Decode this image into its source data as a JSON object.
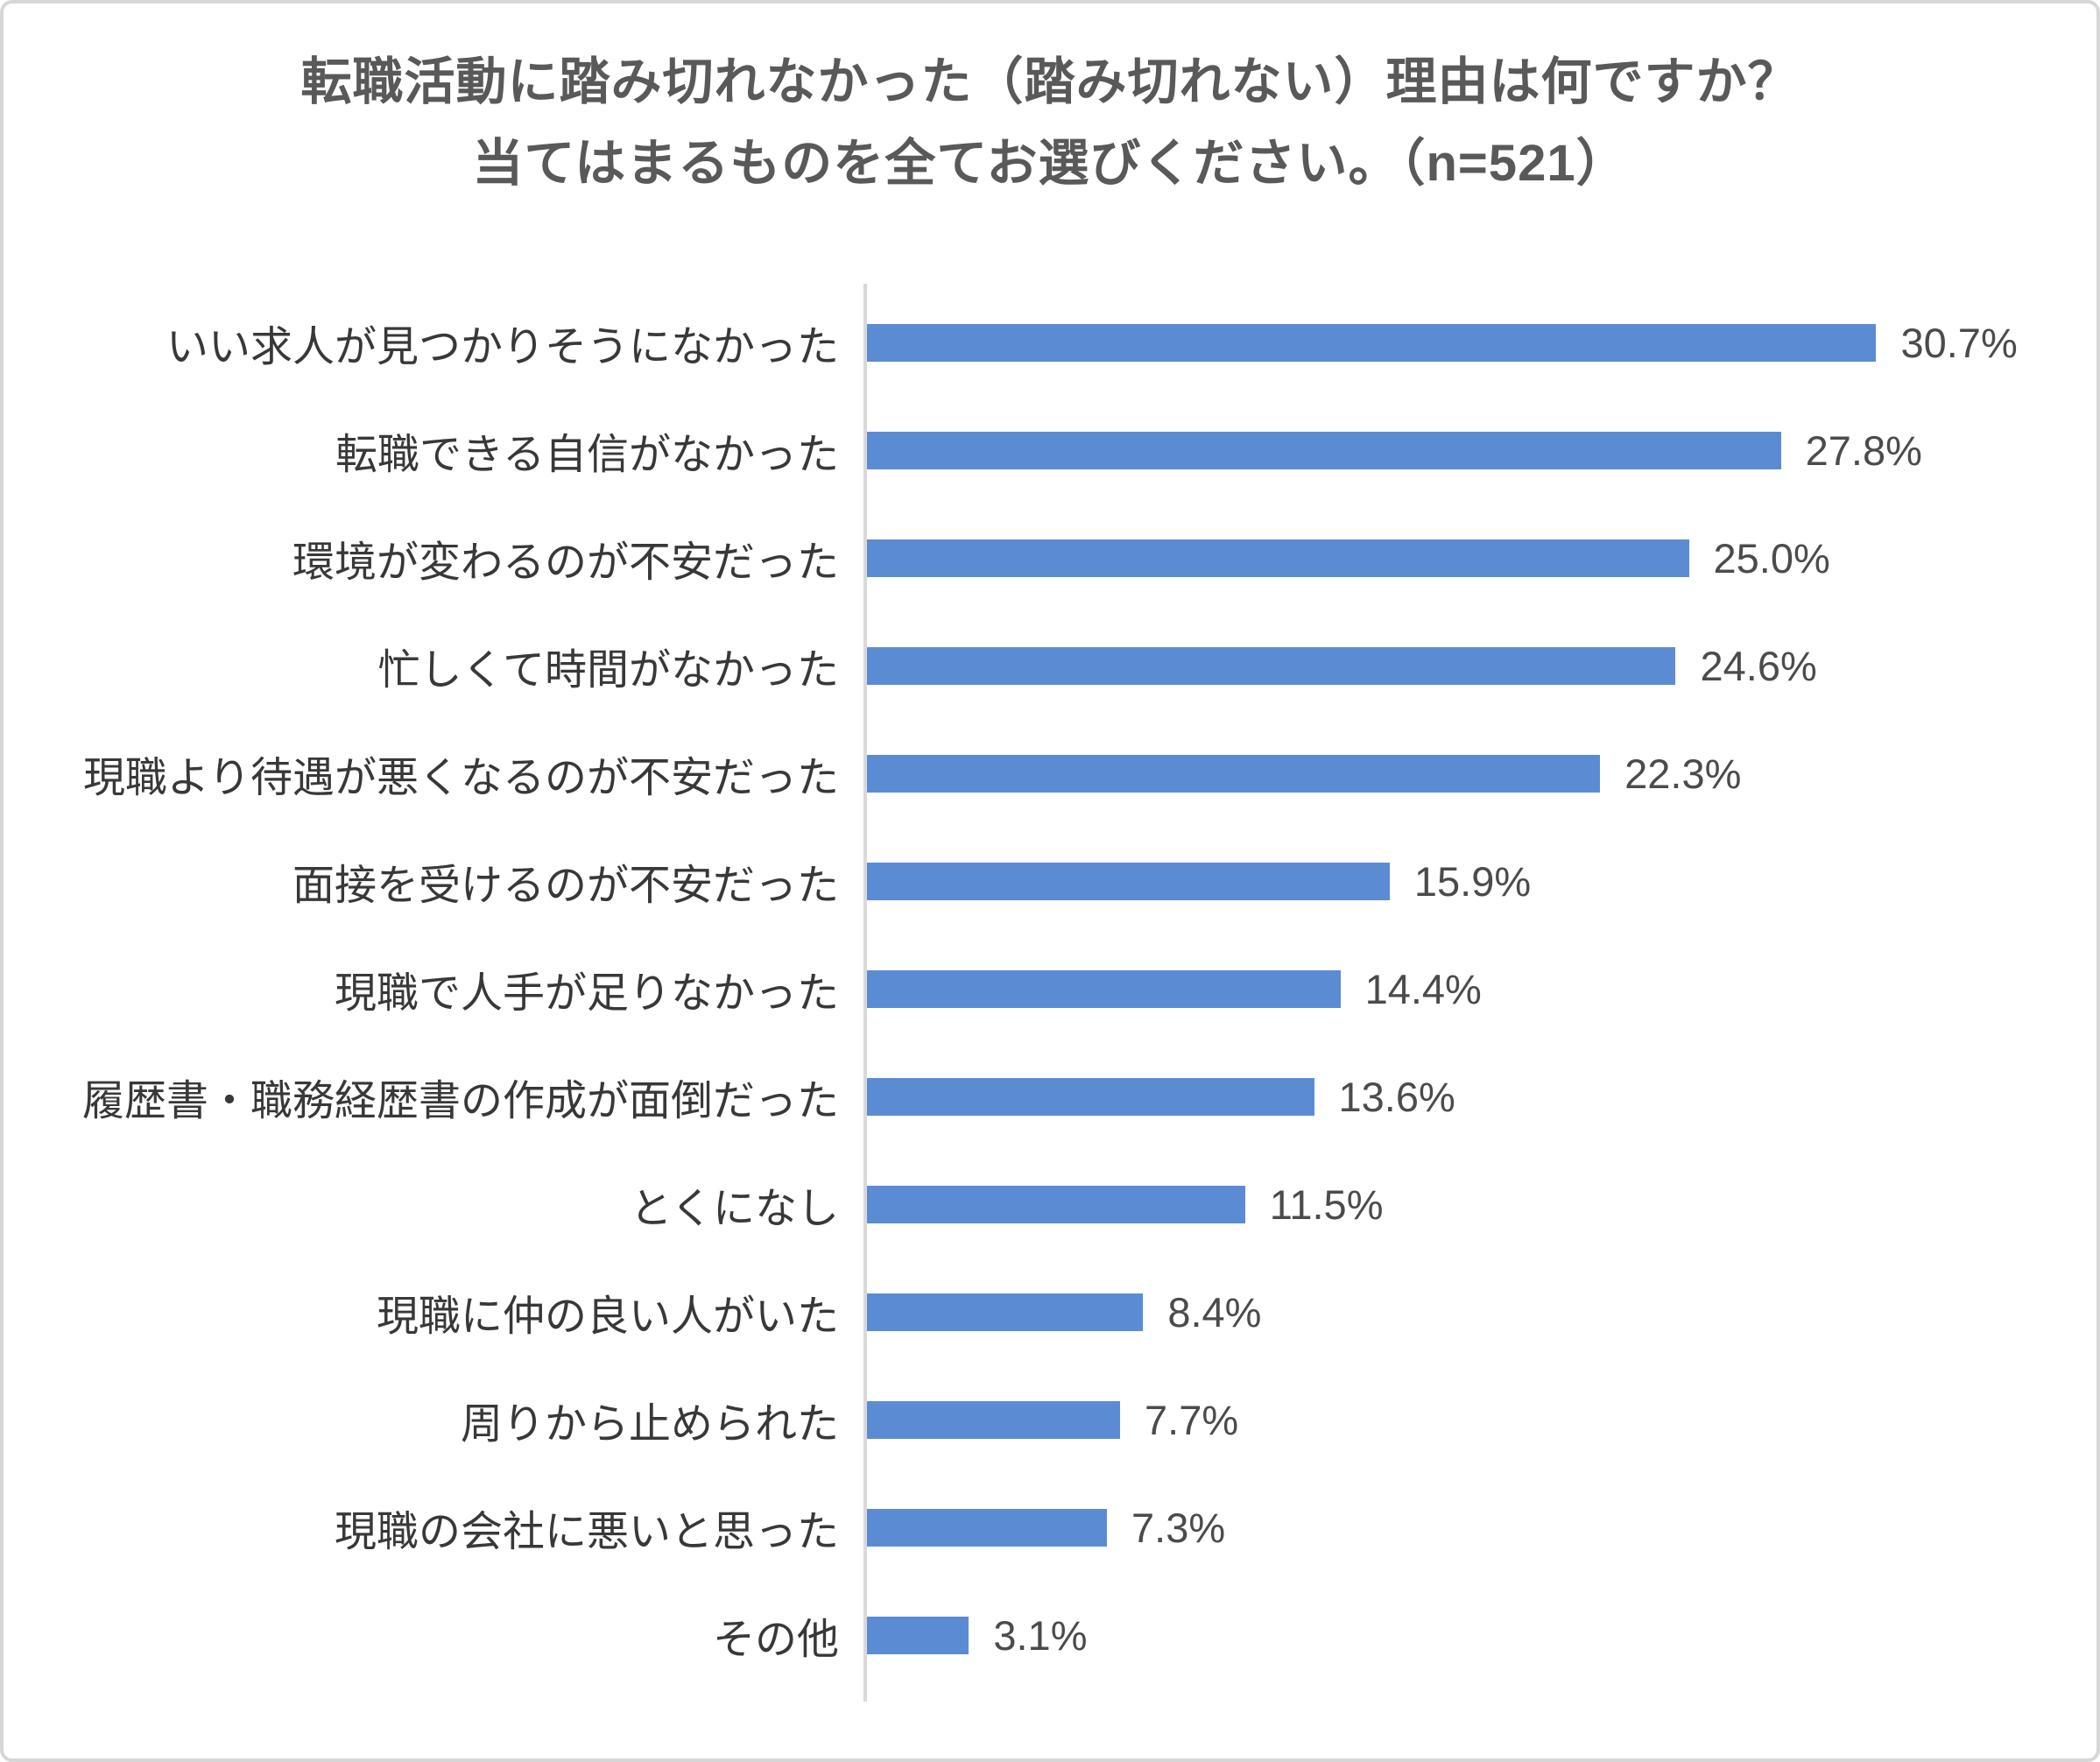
{
  "card": {
    "background": "#ffffff",
    "border_color": "#d6d6d6"
  },
  "title": {
    "line1": "転職活動に踏み切れなかった（踏み切れない）理由は何ですか？",
    "line2": "当てはまるものを全てお選びください。（n=521）",
    "color": "#595959"
  },
  "chart_data": {
    "type": "bar",
    "orientation": "horizontal",
    "n": 521,
    "categories": [
      "いい求人が見つかりそうになかった",
      "転職できる自信がなかった",
      "環境が変わるのが不安だった",
      "忙しくて時間がなかった",
      "現職より待遇が悪くなるのが不安だった",
      "面接を受けるのが不安だった",
      "現職で人手が足りなかった",
      "履歴書・職務経歴書の作成が面倒だった",
      "とくになし",
      "現職に仲の良い人がいた",
      "周りから止められた",
      "現職の会社に悪いと思った",
      "その他"
    ],
    "values": [
      30.7,
      27.8,
      25.0,
      24.6,
      22.3,
      15.9,
      14.4,
      13.6,
      11.5,
      8.4,
      7.7,
      7.3,
      3.1
    ],
    "value_labels": [
      "30.7%",
      "27.8%",
      "25.0%",
      "24.6%",
      "22.3%",
      "15.9%",
      "14.4%",
      "13.6%",
      "11.5%",
      "8.4%",
      "7.7%",
      "7.3%",
      "3.1%"
    ],
    "bar_color": "#5b8cd3",
    "axis_line_color": "#d9d9d9",
    "label_color": "#383838",
    "value_label_color": "#4b4b4b",
    "xlim": [
      0,
      37.4
    ],
    "grid": false,
    "legend": false
  }
}
